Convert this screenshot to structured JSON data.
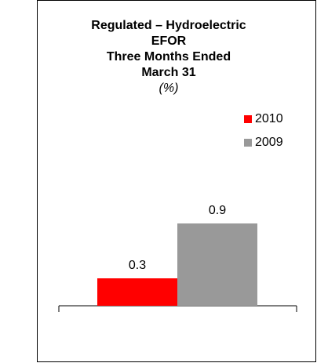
{
  "chart_data": {
    "type": "bar",
    "title": [
      "Regulated – Hydroelectric",
      "EFOR",
      "Three Months Ended",
      "March 31"
    ],
    "subtitle": "(%)",
    "categories": [
      null
    ],
    "series": [
      {
        "name": "2010",
        "color": "#ff0000",
        "values": [
          0.3
        ]
      },
      {
        "name": "2009",
        "color": "#999999",
        "values": [
          0.9
        ]
      }
    ],
    "legend": "top-right"
  }
}
